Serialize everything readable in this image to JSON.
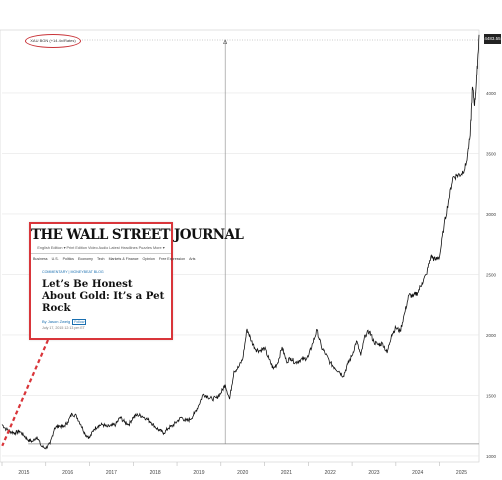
{
  "chart_data": {
    "type": "line",
    "xlim": [
      2015,
      2025.9
    ],
    "ylim": [
      950,
      4520
    ],
    "x_ticks": [
      "2015",
      "2016",
      "2017",
      "2018",
      "2019",
      "2020",
      "2021",
      "2022",
      "2023",
      "2024",
      "2025"
    ],
    "y_ticks": [
      1000,
      1500,
      2000,
      2500,
      3000,
      3500,
      4000
    ],
    "last_price_label": "4483.55",
    "legend_label": "XAU BGN (+14.4x/Rates)",
    "baseline_value": 1100,
    "marker_date": 2020.1,
    "marker_symbol": "Δ",
    "annotation_point": {
      "x": 2015.6,
      "y": 1100
    },
    "series": [
      {
        "color": "#111111",
        "points": [
          [
            2015.0,
            1260
          ],
          [
            2015.1,
            1220
          ],
          [
            2015.2,
            1200
          ],
          [
            2015.3,
            1190
          ],
          [
            2015.4,
            1205
          ],
          [
            2015.5,
            1170
          ],
          [
            2015.6,
            1130
          ],
          [
            2015.7,
            1120
          ],
          [
            2015.8,
            1160
          ],
          [
            2015.9,
            1080
          ],
          [
            2016.0,
            1065
          ],
          [
            2016.1,
            1100
          ],
          [
            2016.2,
            1230
          ],
          [
            2016.3,
            1250
          ],
          [
            2016.4,
            1240
          ],
          [
            2016.5,
            1280
          ],
          [
            2016.6,
            1350
          ],
          [
            2016.7,
            1330
          ],
          [
            2016.8,
            1260
          ],
          [
            2016.9,
            1180
          ],
          [
            2017.0,
            1150
          ],
          [
            2017.1,
            1220
          ],
          [
            2017.2,
            1250
          ],
          [
            2017.3,
            1260
          ],
          [
            2017.4,
            1240
          ],
          [
            2017.5,
            1250
          ],
          [
            2017.6,
            1260
          ],
          [
            2017.7,
            1320
          ],
          [
            2017.8,
            1280
          ],
          [
            2017.9,
            1260
          ],
          [
            2018.0,
            1320
          ],
          [
            2018.1,
            1340
          ],
          [
            2018.2,
            1330
          ],
          [
            2018.3,
            1310
          ],
          [
            2018.4,
            1280
          ],
          [
            2018.5,
            1240
          ],
          [
            2018.6,
            1210
          ],
          [
            2018.7,
            1190
          ],
          [
            2018.8,
            1230
          ],
          [
            2018.9,
            1250
          ],
          [
            2019.0,
            1285
          ],
          [
            2019.1,
            1320
          ],
          [
            2019.2,
            1290
          ],
          [
            2019.3,
            1300
          ],
          [
            2019.4,
            1350
          ],
          [
            2019.5,
            1420
          ],
          [
            2019.6,
            1510
          ],
          [
            2019.7,
            1490
          ],
          [
            2019.8,
            1470
          ],
          [
            2019.9,
            1480
          ],
          [
            2020.0,
            1520
          ],
          [
            2020.1,
            1590
          ],
          [
            2020.2,
            1470
          ],
          [
            2020.3,
            1700
          ],
          [
            2020.4,
            1730
          ],
          [
            2020.5,
            1800
          ],
          [
            2020.6,
            2050
          ],
          [
            2020.7,
            1950
          ],
          [
            2020.8,
            1880
          ],
          [
            2020.9,
            1870
          ],
          [
            2021.0,
            1890
          ],
          [
            2021.1,
            1800
          ],
          [
            2021.2,
            1720
          ],
          [
            2021.3,
            1770
          ],
          [
            2021.4,
            1900
          ],
          [
            2021.5,
            1780
          ],
          [
            2021.6,
            1810
          ],
          [
            2021.7,
            1770
          ],
          [
            2021.8,
            1790
          ],
          [
            2021.9,
            1800
          ],
          [
            2022.0,
            1820
          ],
          [
            2022.1,
            1930
          ],
          [
            2022.2,
            2040
          ],
          [
            2022.3,
            1900
          ],
          [
            2022.4,
            1840
          ],
          [
            2022.5,
            1770
          ],
          [
            2022.6,
            1730
          ],
          [
            2022.7,
            1700
          ],
          [
            2022.8,
            1660
          ],
          [
            2022.9,
            1760
          ],
          [
            2023.0,
            1830
          ],
          [
            2023.1,
            1950
          ],
          [
            2023.2,
            1830
          ],
          [
            2023.3,
            2000
          ],
          [
            2023.4,
            2030
          ],
          [
            2023.5,
            1940
          ],
          [
            2023.6,
            1920
          ],
          [
            2023.7,
            1930
          ],
          [
            2023.8,
            1850
          ],
          [
            2023.9,
            2000
          ],
          [
            2024.0,
            2060
          ],
          [
            2024.1,
            2030
          ],
          [
            2024.2,
            2180
          ],
          [
            2024.3,
            2330
          ],
          [
            2024.4,
            2320
          ],
          [
            2024.5,
            2350
          ],
          [
            2024.6,
            2430
          ],
          [
            2024.7,
            2500
          ],
          [
            2024.8,
            2650
          ],
          [
            2024.9,
            2620
          ],
          [
            2025.0,
            2650
          ],
          [
            2025.1,
            2900
          ],
          [
            2025.2,
            3100
          ],
          [
            2025.3,
            3300
          ],
          [
            2025.4,
            3320
          ],
          [
            2025.5,
            3330
          ],
          [
            2025.6,
            3400
          ],
          [
            2025.7,
            3650
          ],
          [
            2025.75,
            4050
          ],
          [
            2025.8,
            3900
          ],
          [
            2025.85,
            4150
          ],
          [
            2025.9,
            4480
          ]
        ]
      }
    ]
  },
  "wsj": {
    "masthead": "THE WALL STREET JOURNAL",
    "edition": "English Edition ▾   Print Edition   Video   Audio   Latest Headlines   Puzzles   More ▾",
    "nav": [
      "Business",
      "U.S.",
      "Politics",
      "Economy",
      "Tech",
      "Markets & Finance",
      "Opinion",
      "Free Expression",
      "Arts"
    ],
    "section": "COMMENTARY  |  MONEYBEAT BLOG",
    "headline": "Let’s Be Honest About Gold: It’s a Pet Rock",
    "byline": "By Jason Zweig",
    "follow": "Follow",
    "date": "July 17, 2015 12:13 pm ET"
  }
}
